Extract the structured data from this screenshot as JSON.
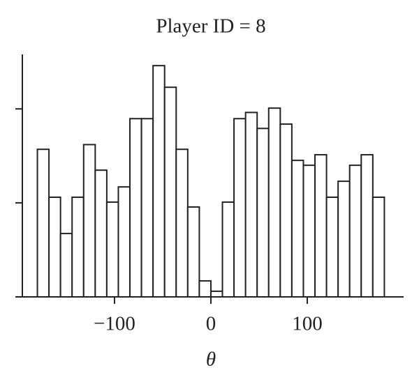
{
  "chart_data": {
    "type": "histogram",
    "title": "Player ID = 8",
    "x_label": "θ",
    "bins": [
      -180,
      -168,
      -156,
      -144,
      -132,
      -120,
      -108,
      -96,
      -84,
      -72,
      -60,
      -48,
      -36,
      -24,
      -12,
      0,
      12,
      24,
      36,
      48,
      60,
      72,
      84,
      96,
      108,
      120,
      132,
      144,
      156,
      168,
      180
    ],
    "values": [
      7.85,
      5.3,
      3.37,
      5.3,
      8.1,
      6.74,
      5.04,
      5.85,
      9.48,
      9.48,
      12.3,
      11.15,
      7.85,
      4.78,
      0.85,
      0.3,
      5.04,
      9.48,
      9.81,
      8.96,
      10.04,
      9.19,
      7.26,
      7.0,
      7.56,
      5.3,
      6.15,
      7.0,
      7.56,
      5.3
    ],
    "color": "#ffffff",
    "edge_color": "#222222",
    "xlim": [
      -195.6,
      200
    ],
    "xticks": [
      {
        "value": -100,
        "label": "−100"
      },
      0,
      100
    ],
    "ylim": [
      0,
      12.9
    ],
    "yticks": [
      5,
      10
    ]
  }
}
